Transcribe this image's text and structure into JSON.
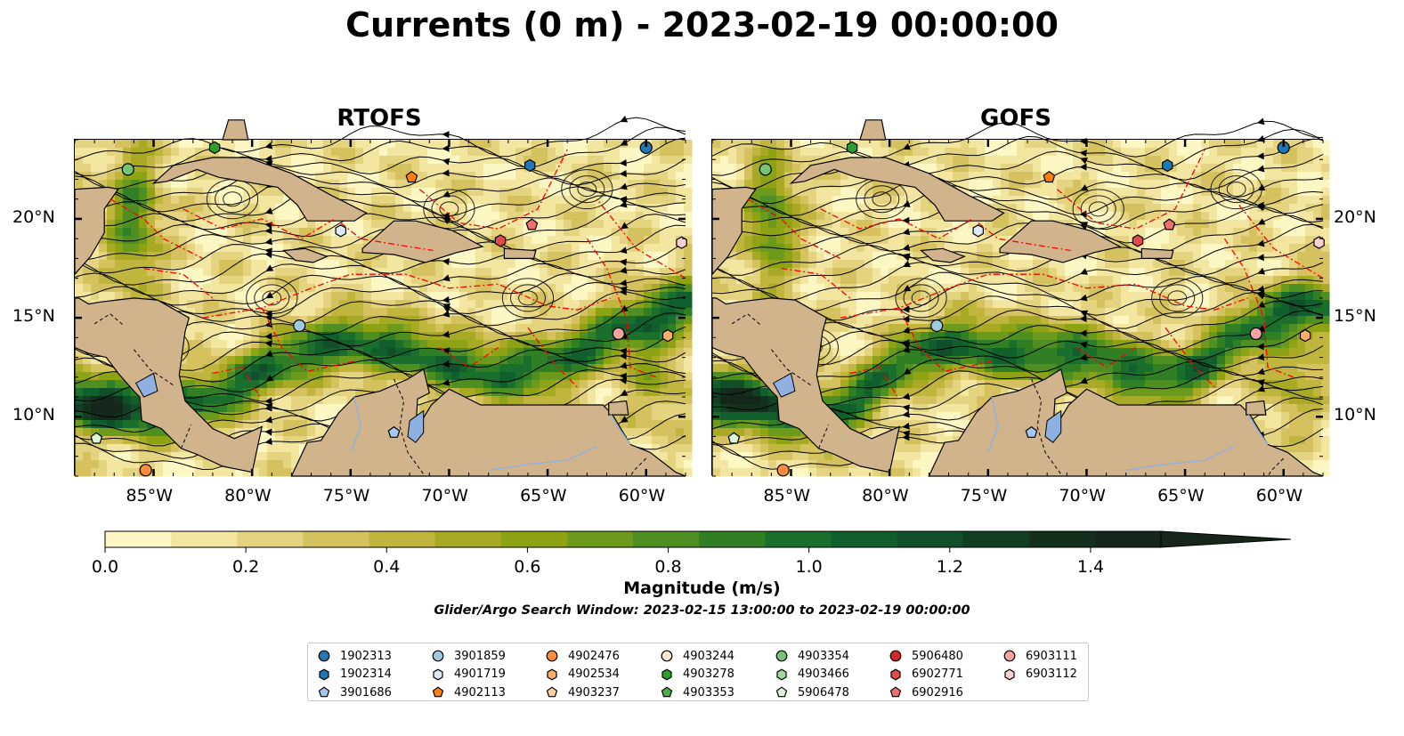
{
  "title": "Currents (0 m) - 2023-02-19 00:00:00",
  "panels": [
    {
      "title": "RTOFS"
    },
    {
      "title": "GOFS"
    }
  ],
  "lon_ticks": [
    "85°W",
    "80°W",
    "75°W",
    "70°W",
    "65°W",
    "60°W"
  ],
  "lat_ticks": [
    "20°N",
    "15°N",
    "10°N"
  ],
  "map_extent": {
    "lon": [
      -89.0,
      -58.0
    ],
    "lat": [
      7.0,
      24.0
    ]
  },
  "colorbar": {
    "label": "Magnitude (m/s)",
    "range": [
      0.0,
      1.5
    ],
    "extend": "max",
    "ticks": [
      "0.0",
      "0.2",
      "0.4",
      "0.6",
      "0.8",
      "1.0",
      "1.2",
      "1.4"
    ],
    "colors": [
      "#fdf7c4",
      "#f2e6a0",
      "#e4d480",
      "#d5c25e",
      "#c0b63e",
      "#a8aa26",
      "#8ea314",
      "#6b9a1c",
      "#4f8f22",
      "#317f25",
      "#1a6f2c",
      "#115f2c",
      "#104f29",
      "#123f23",
      "#13301d",
      "#14271a"
    ]
  },
  "search_window": "Glider/Argo Search Window: 2023-02-15 13:00:00 to 2023-02-19 00:00:00",
  "legend": [
    {
      "id": "1902313",
      "color": "#1f77b4",
      "marker": "circle"
    },
    {
      "id": "1902314",
      "color": "#1f77b4",
      "marker": "hexagon"
    },
    {
      "id": "3901686",
      "color": "#a6c8f0",
      "marker": "pentagon"
    },
    {
      "id": "3901859",
      "color": "#9ecae1",
      "marker": "circle"
    },
    {
      "id": "4901719",
      "color": "#deebf7",
      "marker": "hexagon"
    },
    {
      "id": "4902113",
      "color": "#ff7f0e",
      "marker": "pentagon"
    },
    {
      "id": "4902476",
      "color": "#fd8d3c",
      "marker": "circle"
    },
    {
      "id": "4902534",
      "color": "#fdae6b",
      "marker": "hexagon"
    },
    {
      "id": "4903237",
      "color": "#fdd0a2",
      "marker": "pentagon"
    },
    {
      "id": "4903244",
      "color": "#fde5cf",
      "marker": "circle"
    },
    {
      "id": "4903278",
      "color": "#2ca02c",
      "marker": "hexagon"
    },
    {
      "id": "4903353",
      "color": "#4daf4a",
      "marker": "pentagon"
    },
    {
      "id": "4903354",
      "color": "#74c476",
      "marker": "circle"
    },
    {
      "id": "4903466",
      "color": "#a1d99b",
      "marker": "hexagon"
    },
    {
      "id": "5906478",
      "color": "#d9f7d5",
      "marker": "pentagon"
    },
    {
      "id": "5906480",
      "color": "#d62728",
      "marker": "circle"
    },
    {
      "id": "6902771",
      "color": "#e34a4a",
      "marker": "hexagon"
    },
    {
      "id": "6902916",
      "color": "#f07070",
      "marker": "pentagon"
    },
    {
      "id": "6903111",
      "color": "#f4a3a3",
      "marker": "circle"
    },
    {
      "id": "6903112",
      "color": "#fbd0d0",
      "marker": "hexagon"
    }
  ],
  "floats": [
    {
      "id": "1902313",
      "lon": -60.0,
      "lat": 23.6
    },
    {
      "id": "1902314",
      "lon": -65.9,
      "lat": 22.7
    },
    {
      "id": "3901686",
      "lon": -72.8,
      "lat": 9.2
    },
    {
      "id": "3901859",
      "lon": -77.6,
      "lat": 14.6
    },
    {
      "id": "4901719",
      "lon": -75.5,
      "lat": 19.4
    },
    {
      "id": "4902113",
      "lon": -71.9,
      "lat": 22.1
    },
    {
      "id": "4902476",
      "lon": -85.4,
      "lat": 7.3
    },
    {
      "id": "4902534",
      "lon": -58.9,
      "lat": 14.1
    },
    {
      "id": "4903278",
      "lon": -81.9,
      "lat": 23.6
    },
    {
      "id": "4903354",
      "lon": -86.3,
      "lat": 22.5
    },
    {
      "id": "5906478",
      "lon": -87.9,
      "lat": 8.9
    },
    {
      "id": "6902771",
      "lon": -67.4,
      "lat": 18.9
    },
    {
      "id": "6902916",
      "lon": -65.8,
      "lat": 19.7
    },
    {
      "id": "6903111",
      "lon": -61.4,
      "lat": 14.2
    },
    {
      "id": "6903112",
      "lon": -58.2,
      "lat": 18.8
    }
  ],
  "colors": {
    "land": "#d2b48c",
    "lake": "#8fb0e0",
    "river": "#8fb0e0",
    "eez": "#ff0000",
    "streamline": "#000000"
  }
}
